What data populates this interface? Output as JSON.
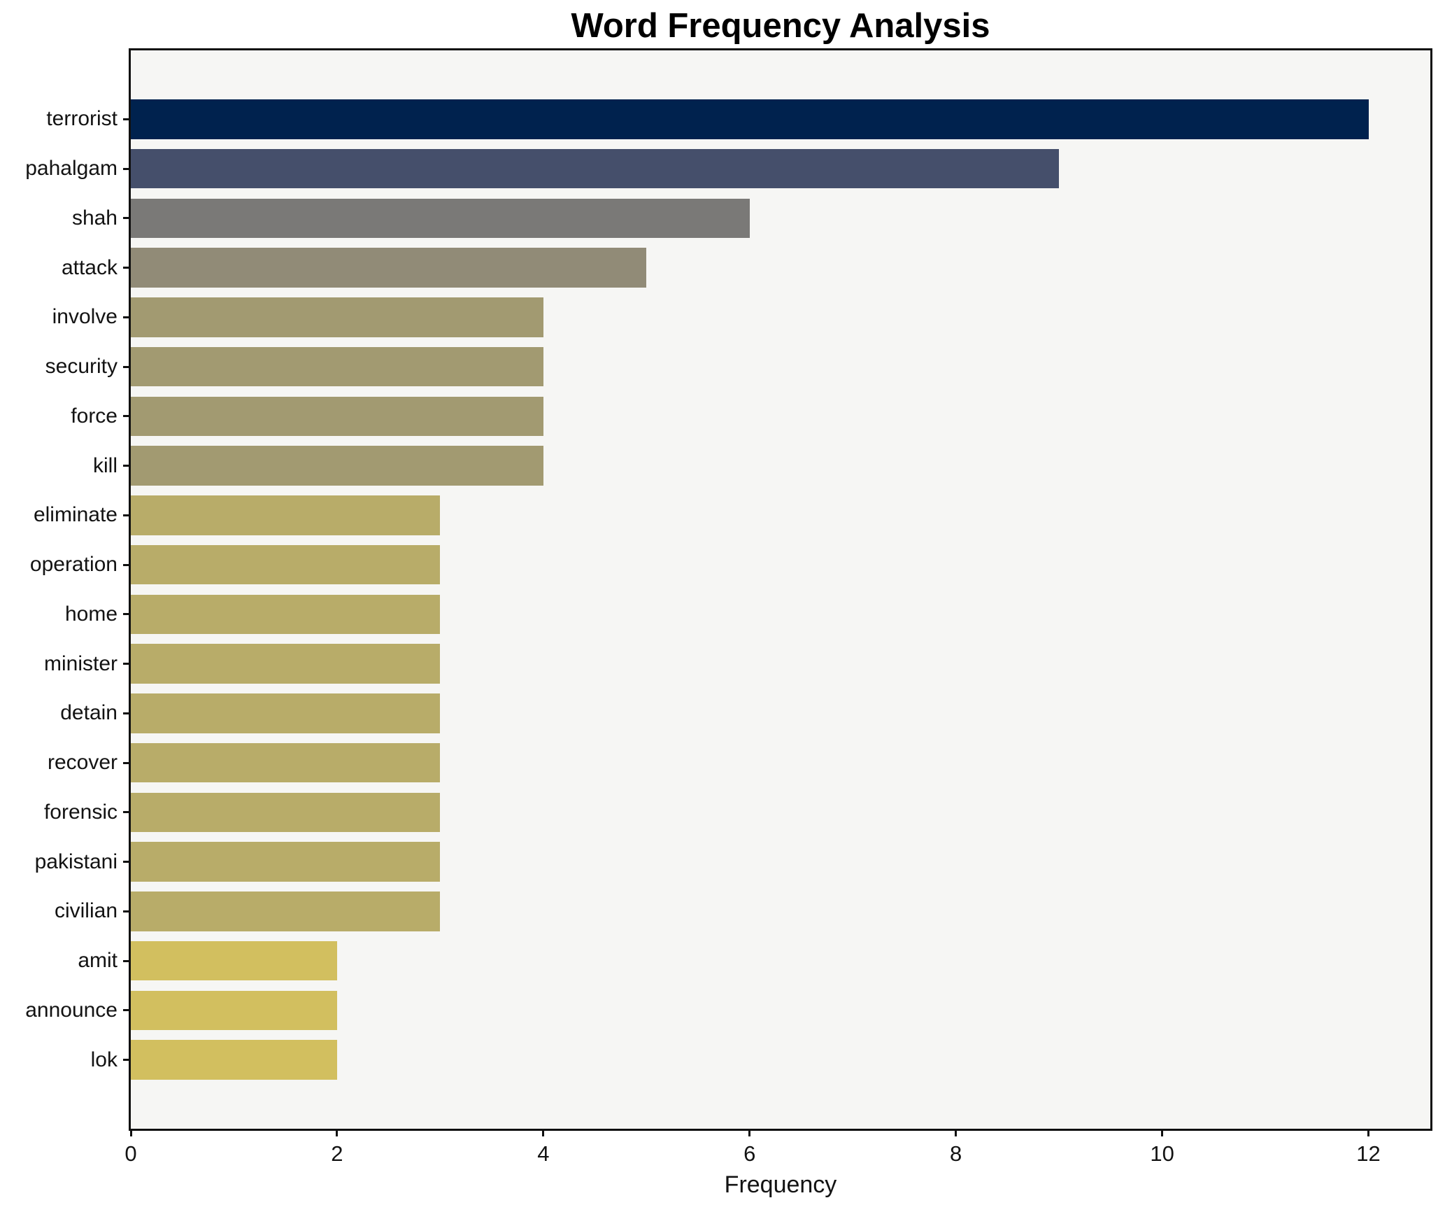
{
  "figure": {
    "background": "#ffffff",
    "plot_background": "#f6f6f4",
    "axis_color": "#101010",
    "text_color": "#131313"
  },
  "chart_data": {
    "type": "bar",
    "orientation": "horizontal",
    "title": "Word Frequency Analysis",
    "xlabel": "Frequency",
    "ylabel": "",
    "categories": [
      "terrorist",
      "pahalgam",
      "shah",
      "attack",
      "involve",
      "security",
      "force",
      "kill",
      "eliminate",
      "operation",
      "home",
      "minister",
      "detain",
      "recover",
      "forensic",
      "pakistani",
      "civilian",
      "amit",
      "announce",
      "lok"
    ],
    "values": [
      12,
      9,
      6,
      5,
      4,
      4,
      4,
      4,
      3,
      3,
      3,
      3,
      3,
      3,
      3,
      3,
      3,
      2,
      2,
      2
    ],
    "bar_colors": [
      "#00224e",
      "#454f6b",
      "#7a7977",
      "#918b77",
      "#a29a71",
      "#a29a71",
      "#a29a71",
      "#a29a71",
      "#b8ac69",
      "#b8ac69",
      "#b8ac69",
      "#b8ac69",
      "#b8ac69",
      "#b8ac69",
      "#b8ac69",
      "#b8ac69",
      "#b8ac69",
      "#d2bf5f",
      "#d2bf5f",
      "#d2bf5f"
    ],
    "xticks": [
      0,
      2,
      4,
      6,
      8,
      10,
      12
    ],
    "xlim": [
      0,
      12.6
    ],
    "grid": false,
    "legend_position": "none"
  }
}
